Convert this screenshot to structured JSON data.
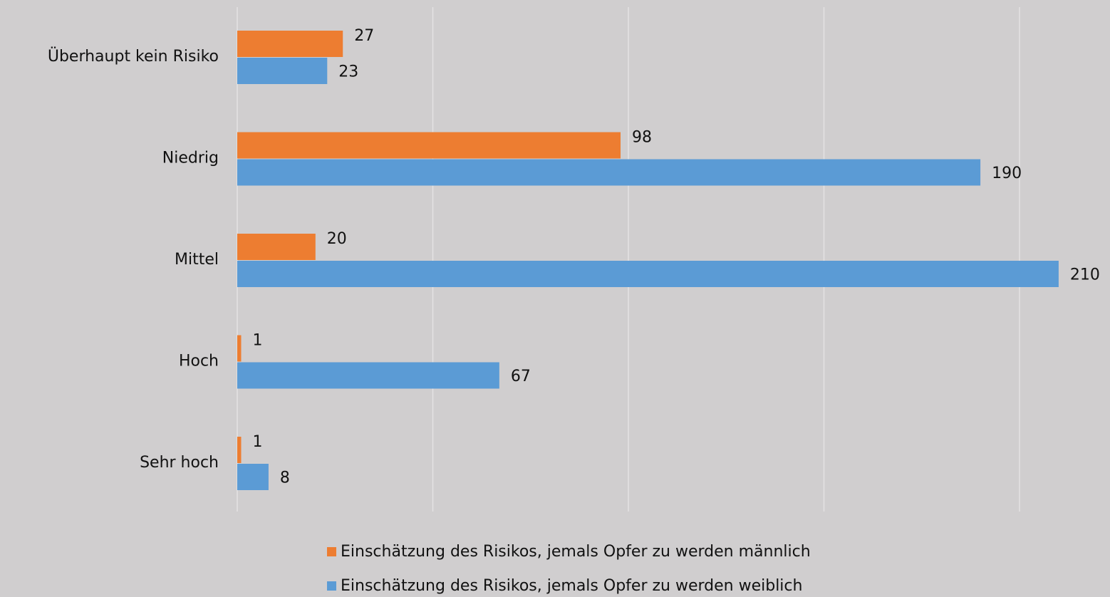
{
  "chart_data": {
    "type": "hbar",
    "categories": [
      "Überhaupt kein Risiko",
      "Niedrig",
      "Mittel",
      "Hoch",
      "Sehr hoch"
    ],
    "series": [
      {
        "name": "Einschätzung des Risikos, jemals Opfer zu werden männlich",
        "color": "#ed7d31",
        "values": [
          27,
          98,
          20,
          1,
          1
        ]
      },
      {
        "name": "Einschätzung des Risikos, jemals Opfer zu werden weiblich",
        "color": "#5b9bd5",
        "values": [
          23,
          190,
          210,
          67,
          8
        ]
      }
    ],
    "xlim": [
      0,
      250
    ],
    "xticks": [
      0,
      50,
      100,
      150,
      200
    ],
    "grid": true,
    "legend": "bottom"
  }
}
